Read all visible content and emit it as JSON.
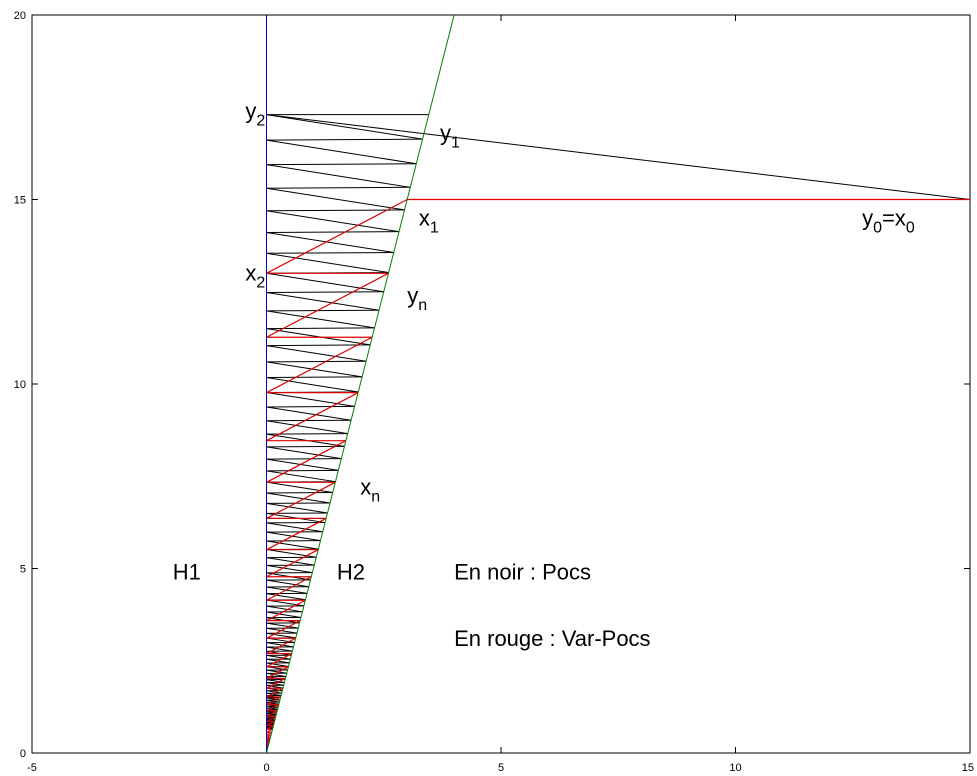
{
  "chart_data": {
    "type": "line",
    "title": "",
    "xlabel": "",
    "ylabel": "",
    "xlim": [
      -5,
      15
    ],
    "ylim": [
      0,
      20
    ],
    "grid": false,
    "x_ticks": [
      -5,
      0,
      5,
      10,
      15
    ],
    "x_tick_labels": [
      "-5",
      "0",
      "5",
      "10",
      "15"
    ],
    "y_ticks": [
      0,
      5,
      10,
      15,
      20
    ],
    "y_tick_labels": [
      "0",
      "5",
      "10",
      "15",
      "20"
    ],
    "colors": {
      "h1": "#0000cc",
      "h2": "#008000",
      "pocs": "#000000",
      "var_pocs": "#e00000"
    },
    "lines": {
      "h1": {
        "x": [
          0,
          0
        ],
        "y": [
          0,
          20
        ]
      },
      "h2": {
        "x": [
          0,
          4
        ],
        "y": [
          0,
          20
        ]
      }
    },
    "pocs": {
      "x0": [
        15,
        15
      ],
      "contraction": 0.96,
      "steps": 80
    },
    "var_pocs": {
      "x0": [
        15,
        15
      ],
      "contraction": 0.8667,
      "steps": 40
    },
    "annotations": {
      "y2": {
        "base": "y",
        "sub": "2",
        "x": -0.45,
        "y": 17.2
      },
      "y1": {
        "base": "y",
        "sub": "1",
        "x": 3.7,
        "y": 16.6
      },
      "x1": {
        "base": "x",
        "sub": "1",
        "x": 3.25,
        "y": 14.3
      },
      "y0x0": {
        "parts": [
          [
            "y",
            ""
          ],
          [
            "0",
            "sub"
          ],
          [
            "=x",
            ""
          ],
          [
            "0",
            "sub"
          ]
        ],
        "x": 12.7,
        "y": 14.3
      },
      "x2": {
        "base": "x",
        "sub": "2",
        "x": -0.45,
        "y": 12.8
      },
      "yn": {
        "base": "y",
        "sub": "n",
        "x": 3.0,
        "y": 12.2
      },
      "xn": {
        "base": "x",
        "sub": "n",
        "x": 2.0,
        "y": 7.0
      },
      "h1": {
        "text": "H1",
        "x": -2.0,
        "y": 4.7
      },
      "h2": {
        "text": "H2",
        "x": 1.5,
        "y": 4.7
      },
      "legend_pocs": {
        "text": "En noir : Pocs",
        "x": 4.0,
        "y": 4.7
      },
      "legend_var": {
        "text": "En rouge : Var-Pocs",
        "x": 4.0,
        "y": 2.9
      }
    }
  }
}
